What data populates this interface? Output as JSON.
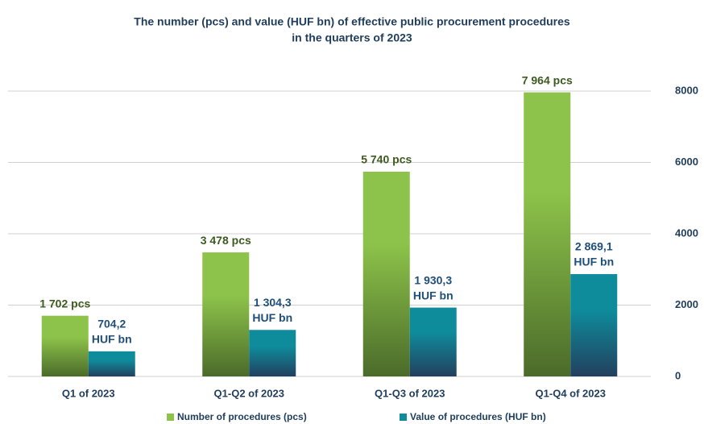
{
  "chart_data": {
    "type": "bar",
    "title": [
      "The number (pcs) and value (HUF bn) of effective public procurement procedures",
      "in the quarters of 2023"
    ],
    "categories": [
      "Q1 of 2023",
      "Q1-Q2 of 2023",
      "Q1-Q3 of 2023",
      "Q1-Q4 of 2023"
    ],
    "series": [
      {
        "name": "Number of procedures (pcs)",
        "color": "#8dc34a",
        "color_bottom": "#4b6b2a",
        "label_color": "#3d5a1f",
        "values": [
          1702,
          3478,
          5740,
          7964
        ],
        "value_labels": [
          [
            "1 702 pcs"
          ],
          [
            "3 478 pcs"
          ],
          [
            "5 740 pcs"
          ],
          [
            "7 964 pcs"
          ]
        ]
      },
      {
        "name": "Value of procedures (HUF bn)",
        "color": "#0e8c9c",
        "color_bottom": "#22405e",
        "label_color": "#1f4e79",
        "values": [
          704.2,
          1304.3,
          1930.3,
          2869.1
        ],
        "value_labels": [
          [
            "704,2",
            "HUF bn"
          ],
          [
            "1 304,3",
            "HUF bn"
          ],
          [
            "1 930,3",
            "HUF bn"
          ],
          [
            "2 869,1",
            "HUF bn"
          ]
        ]
      }
    ],
    "ylim": [
      0,
      8000
    ],
    "yticks": [
      0,
      2000,
      4000,
      6000,
      8000
    ],
    "grid": true,
    "axis_side": "right",
    "legend": "bottom"
  }
}
